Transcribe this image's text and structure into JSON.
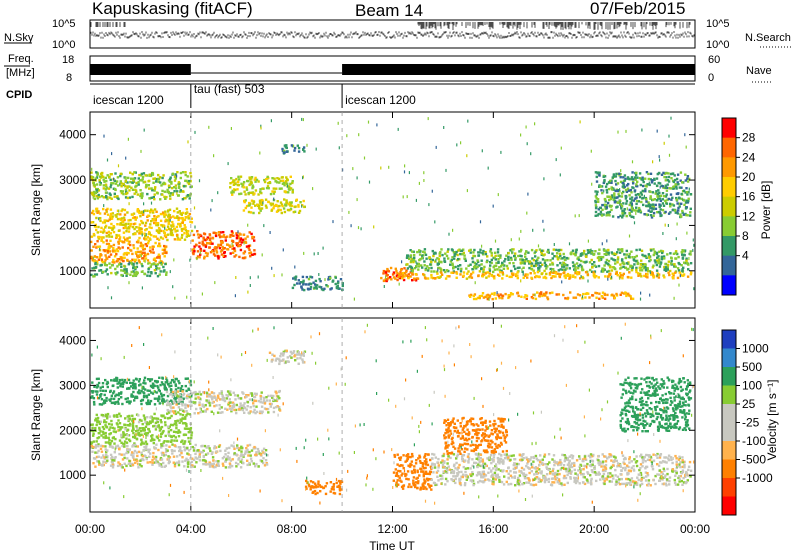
{
  "header": {
    "station": "Kapuskasing (fitACF)",
    "beam": "Beam 14",
    "date": "07/Feb/2015"
  },
  "strips": {
    "nsky_label": "N.Sky",
    "nsky_ticks": [
      "10^5",
      "10^0"
    ],
    "nsearch_label": "N.Search",
    "nsearch_ticks": [
      "10^5",
      "10^0"
    ],
    "freq_label_1": "Freq.",
    "freq_label_2": "[MHz]",
    "freq_ticks": [
      "18",
      "8"
    ],
    "nave_label": "Nave",
    "nave_ticks": [
      "60",
      "0"
    ],
    "cpid_label": "CPID",
    "cpid_segments": [
      {
        "start_h": 0,
        "end_h": 4.0,
        "label": "icescan 1200"
      },
      {
        "start_h": 4.0,
        "end_h": 10.0,
        "label": "tau (fast) 503"
      },
      {
        "start_h": 10.0,
        "end_h": 24.0,
        "label": "icescan 1200"
      }
    ]
  },
  "power_panel": {
    "ylabel": "Slant Range [km]",
    "cbar_label": "Power [dB]",
    "cbar_ticks": [
      "28",
      "24",
      "20",
      "16",
      "12",
      "8",
      "4"
    ],
    "cbar_colors": [
      "#ff0000",
      "#ff6600",
      "#ff9900",
      "#ffcc00",
      "#cccc00",
      "#88cc33",
      "#339966",
      "#336699",
      "#0000ff"
    ]
  },
  "velocity_panel": {
    "ylabel": "Slant Range [km]",
    "cbar_label": "Velocity [m s⁻¹]",
    "cbar_ticks": [
      "1000",
      "500",
      "100",
      "25",
      "-25",
      "-100",
      "-500",
      "-1000"
    ],
    "cbar_colors": [
      "#1f3fbf",
      "#3388cc",
      "#2ca05a",
      "#88cc33",
      "#c8c8c0",
      "#c8c8c0",
      "#ffb24d",
      "#ff8000",
      "#ff4000",
      "#ff0000"
    ]
  },
  "xaxis": {
    "label": "Time UT",
    "ticks": [
      "00:00",
      "04:00",
      "08:00",
      "12:00",
      "16:00",
      "20:00",
      "00:00"
    ]
  },
  "yaxis_ticks": [
    "4000",
    "3000",
    "2000",
    "1000"
  ],
  "chart_data": [
    {
      "type": "heatmap",
      "title": "Kapuskasing (fitACF) Beam 14 07/Feb/2015",
      "quantity": "Power [dB]",
      "xlabel": "Time UT",
      "ylabel": "Slant Range [km]",
      "xlim_hours": [
        0,
        24
      ],
      "ylim_km": [
        180,
        4500
      ],
      "clim": [
        0,
        30
      ],
      "regions": [
        {
          "t": [
            0.0,
            4.0
          ],
          "r": [
            2600,
            3200
          ],
          "v": 12
        },
        {
          "t": [
            0.0,
            4.0
          ],
          "r": [
            1700,
            2400
          ],
          "v": 18
        },
        {
          "t": [
            0.0,
            3.0
          ],
          "r": [
            1200,
            1700
          ],
          "v": 22
        },
        {
          "t": [
            0.0,
            3.0
          ],
          "r": [
            900,
            1200
          ],
          "v": 10
        },
        {
          "t": [
            4.0,
            6.5
          ],
          "r": [
            1300,
            1900
          ],
          "v": 26
        },
        {
          "t": [
            5.5,
            8.0
          ],
          "r": [
            2700,
            3100
          ],
          "v": 14
        },
        {
          "t": [
            6.0,
            8.5
          ],
          "r": [
            2300,
            2600
          ],
          "v": 16
        },
        {
          "t": [
            7.5,
            8.5
          ],
          "r": [
            3600,
            3800
          ],
          "v": 6
        },
        {
          "t": [
            8.0,
            10.0
          ],
          "r": [
            600,
            900
          ],
          "v": 6
        },
        {
          "t": [
            11.5,
            13.0
          ],
          "r": [
            800,
            1100
          ],
          "v": 26
        },
        {
          "t": [
            12.5,
            23.8
          ],
          "r": [
            1000,
            1500
          ],
          "v": 10
        },
        {
          "t": [
            12.0,
            23.8
          ],
          "r": [
            850,
            1000
          ],
          "v": 20
        },
        {
          "t": [
            15.0,
            21.5
          ],
          "r": [
            400,
            550
          ],
          "v": 22
        },
        {
          "t": [
            20.0,
            23.8
          ],
          "r": [
            2200,
            3200
          ],
          "v": 8
        }
      ]
    },
    {
      "type": "heatmap",
      "quantity": "Velocity [m s-1]",
      "xlabel": "Time UT",
      "ylabel": "Slant Range [km]",
      "xlim_hours": [
        0,
        24
      ],
      "ylim_km": [
        180,
        4500
      ],
      "clim": [
        -1000,
        1000
      ],
      "regions": [
        {
          "t": [
            0.0,
            4.0
          ],
          "r": [
            2600,
            3200
          ],
          "v": 150
        },
        {
          "t": [
            0.0,
            4.0
          ],
          "r": [
            1700,
            2400
          ],
          "v": 60
        },
        {
          "t": [
            0.0,
            7.0
          ],
          "r": [
            1200,
            1700
          ],
          "v": 0
        },
        {
          "t": [
            3.0,
            7.5
          ],
          "r": [
            2400,
            2900
          ],
          "v": 0
        },
        {
          "t": [
            7.0,
            8.5
          ],
          "r": [
            3500,
            3800
          ],
          "v": 0
        },
        {
          "t": [
            8.5,
            10.0
          ],
          "r": [
            600,
            900
          ],
          "v": -150
        },
        {
          "t": [
            12.0,
            13.5
          ],
          "r": [
            700,
            1500
          ],
          "v": -200
        },
        {
          "t": [
            13.5,
            23.8
          ],
          "r": [
            800,
            1500
          ],
          "v": 0
        },
        {
          "t": [
            14.0,
            16.5
          ],
          "r": [
            1500,
            2300
          ],
          "v": -300
        },
        {
          "t": [
            21.0,
            23.8
          ],
          "r": [
            2000,
            3200
          ],
          "v": 150
        }
      ]
    }
  ]
}
